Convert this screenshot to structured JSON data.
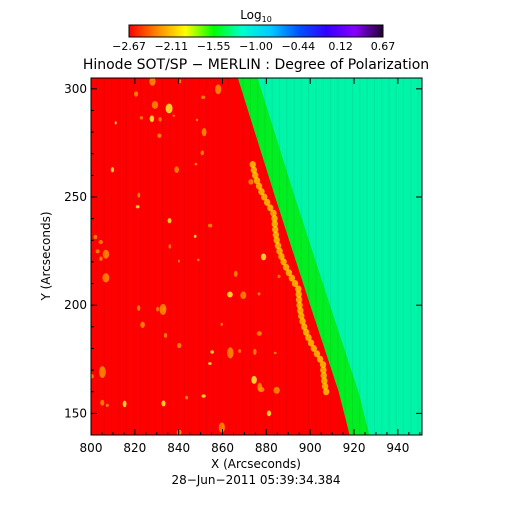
{
  "chart_data": {
    "type": "heatmap",
    "title": "Hinode SOT/SP − MERLIN : Degree of Polarization",
    "xlabel": "X (Arcseconds)",
    "ylabel": "Y (Arcseconds)",
    "timestamp": "28−Jun−2011 05:39:34.384",
    "xlim": [
      800,
      951
    ],
    "ylim": [
      140,
      305
    ],
    "x_ticks": [
      "800",
      "820",
      "840",
      "860",
      "880",
      "900",
      "920",
      "940"
    ],
    "y_ticks": [
      "150",
      "200",
      "250",
      "300"
    ],
    "colorbar": {
      "label_base": "Log",
      "label_sub": "10",
      "range": [
        -2.67,
        0.67
      ],
      "tick_labels": [
        "−2.67",
        "−2.11",
        "−1.55",
        "−1.00",
        "−0.44",
        "0.12",
        "0.67"
      ],
      "colors": [
        "#ff0000",
        "#ff8800",
        "#ffff00",
        "#00ff00",
        "#00ffcc",
        "#00ccff",
        "#0055ff",
        "#3300ff",
        "#8800ff",
        "#220033"
      ]
    },
    "limb_x_at_y": [
      [
        305,
        867
      ],
      [
        250,
        884
      ],
      [
        200,
        900
      ],
      [
        160,
        913
      ],
      [
        140,
        918
      ]
    ],
    "disk_value": -2.6,
    "offlimb_value": -0.5
  }
}
